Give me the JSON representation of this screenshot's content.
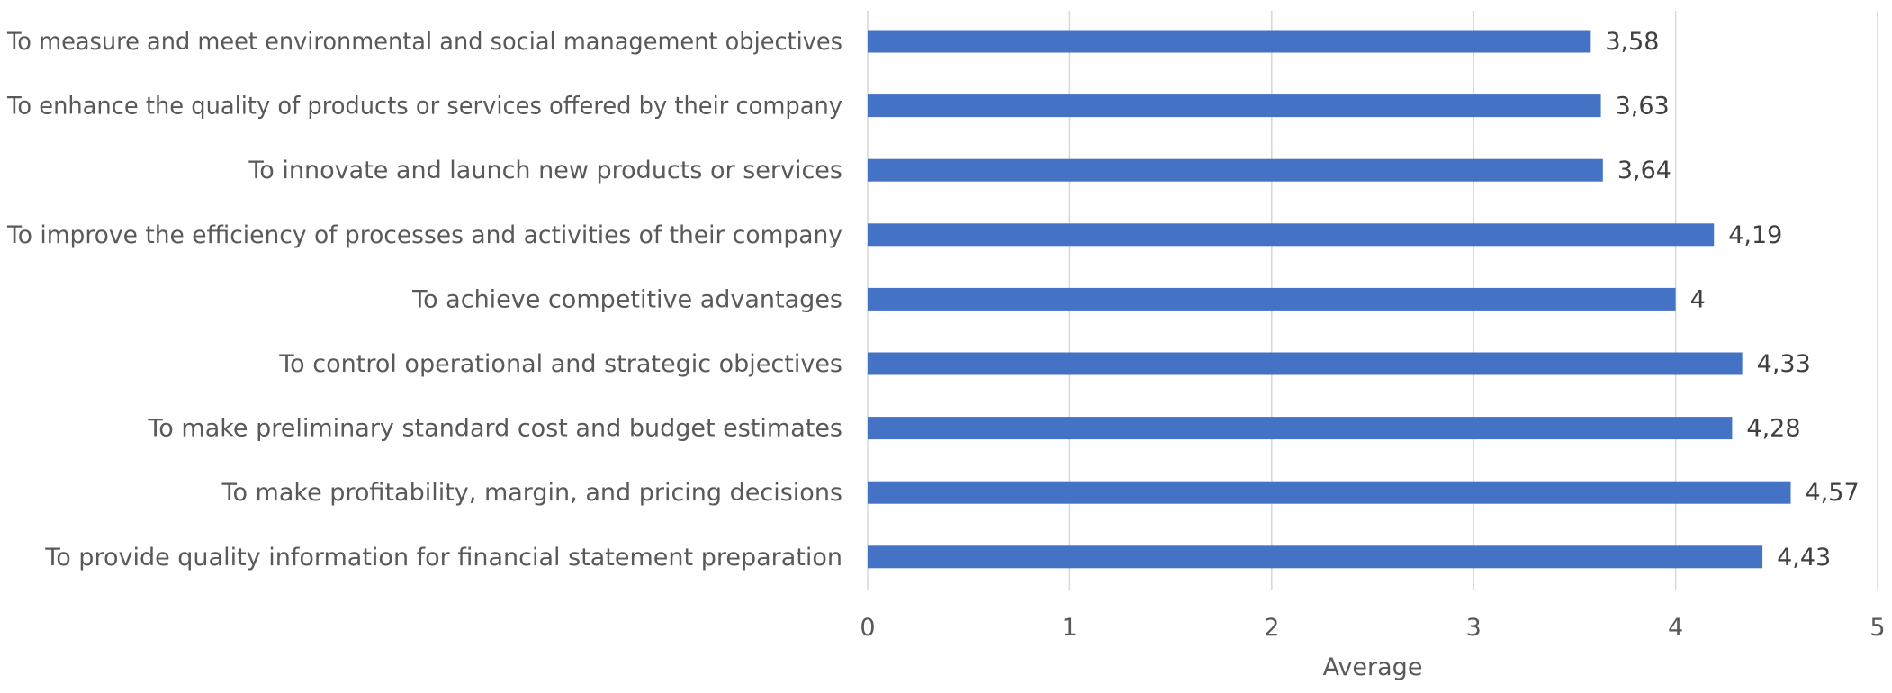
{
  "chart_data": {
    "type": "bar",
    "orientation": "horizontal",
    "categories": [
      "To measure and meet environmental and social management objectives",
      "To enhance the quality of products or services offered by their company",
      "To innovate and launch new products or services",
      "To improve the efficiency of processes and activities of their company",
      "To achieve competitive advantages",
      "To control operational and strategic objectives",
      "To make preliminary standard cost and budget estimates",
      "To make profitability, margin, and pricing decisions",
      "To provide quality information for financial statement preparation"
    ],
    "values": [
      3.58,
      3.63,
      3.64,
      4.19,
      4,
      4.33,
      4.28,
      4.57,
      4.43
    ],
    "value_labels": [
      "3,58",
      "3,63",
      "3,64",
      "4,19",
      "4",
      "4,33",
      "4,28",
      "4,57",
      "4,43"
    ],
    "xlabel": "Average",
    "ylabel": "",
    "title": "",
    "xlim": [
      0,
      5
    ],
    "xticks": [
      "0",
      "1",
      "2",
      "3",
      "4",
      "5"
    ],
    "grid": true,
    "legend": "none",
    "bar_color": "#4472c4"
  }
}
